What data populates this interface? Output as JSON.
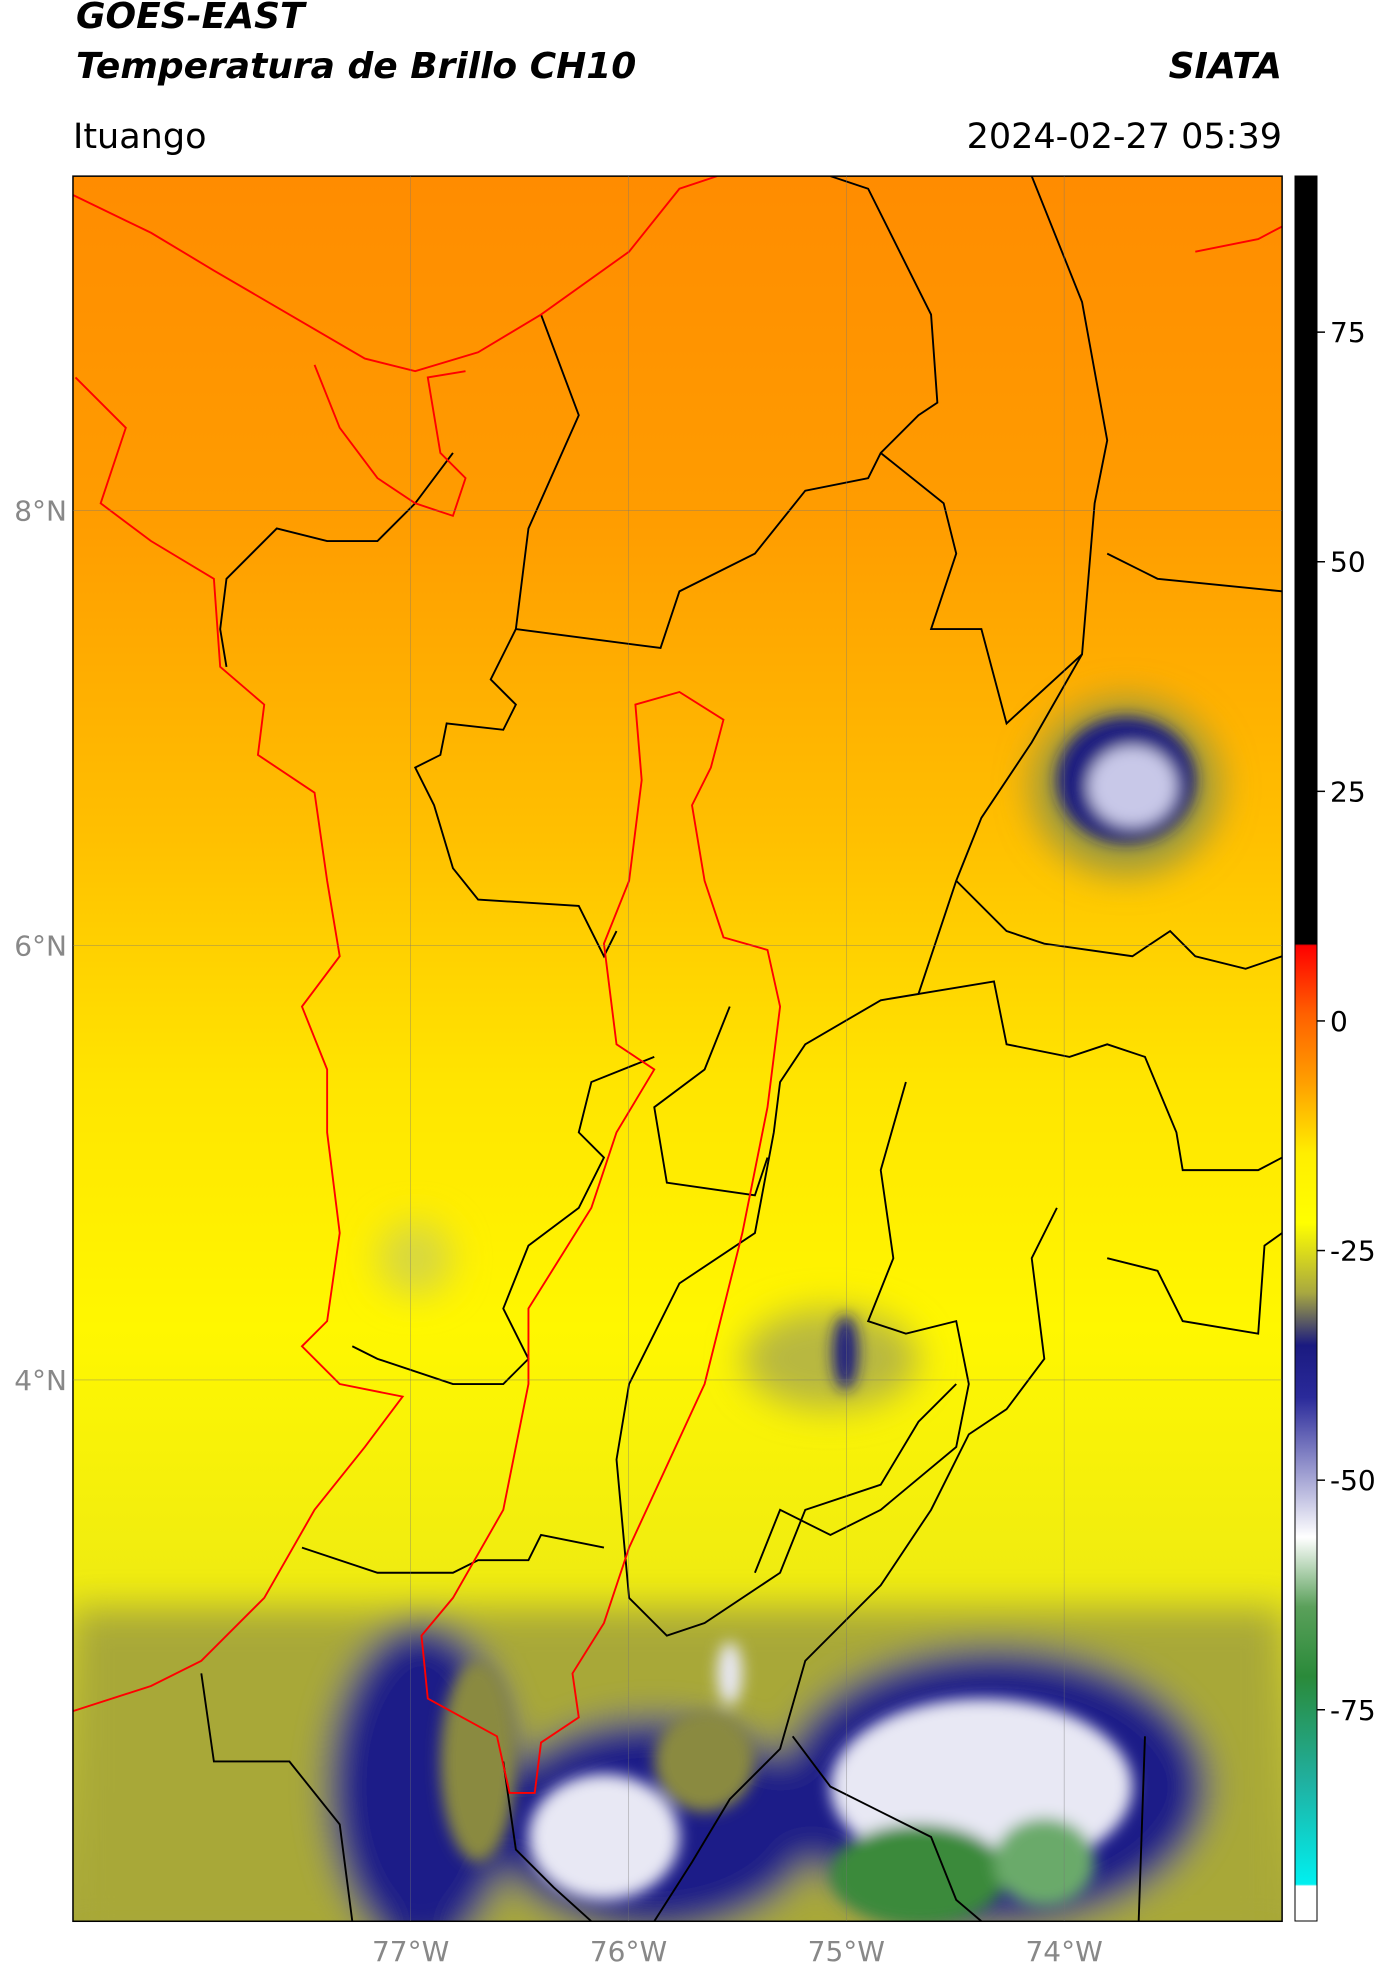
{
  "header": {
    "title": "GOES-EAST",
    "subtitle": "Temperatura de Brillo CH10",
    "source": "SIATA",
    "region": "Ituango",
    "timestamp": "2024-02-27 05:39"
  },
  "map": {
    "xlim": [
      -78.55,
      -73.0
    ],
    "ylim": [
      1.51,
      9.54
    ],
    "xticks": [
      {
        "value": -77,
        "label": "77°W"
      },
      {
        "value": -76,
        "label": "76°W"
      },
      {
        "value": -75,
        "label": "75°W"
      },
      {
        "value": -74,
        "label": "74°W"
      }
    ],
    "yticks": [
      {
        "value": 8,
        "label": "8°N"
      },
      {
        "value": 6,
        "label": "6°N"
      },
      {
        "value": 4,
        "label": "4°N"
      }
    ],
    "grid": true
  },
  "colorbar": {
    "lim": [
      -98,
      92
    ],
    "ticks": [
      75,
      50,
      25,
      0,
      -25,
      -50,
      -75
    ]
  }
}
